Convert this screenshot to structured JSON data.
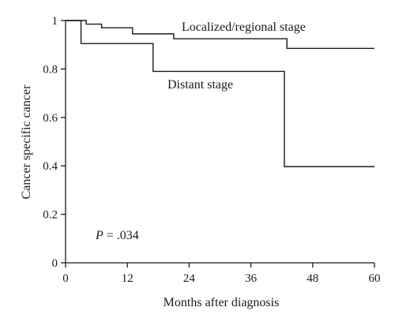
{
  "chart_data": {
    "type": "line",
    "step": true,
    "title": "",
    "xlabel": "Months after diagnosis",
    "ylabel": "Cancer specific cancer",
    "xlim": [
      0,
      60
    ],
    "ylim": [
      0,
      1
    ],
    "xticks": [
      0,
      12,
      24,
      36,
      48,
      60
    ],
    "yticks": [
      0,
      0.2,
      0.4,
      0.6,
      0.8,
      1
    ],
    "xtick_labels": [
      "0",
      "12",
      "24",
      "36",
      "48",
      "60"
    ],
    "ytick_labels": [
      "0",
      "0.2",
      "0.4",
      "0.6",
      "0.8",
      "1"
    ],
    "grid": false,
    "series": [
      {
        "name": "Localized/regional stage",
        "x": [
          0,
          4,
          7,
          13,
          21,
          43,
          60
        ],
        "y": [
          1.0,
          0.985,
          0.97,
          0.945,
          0.925,
          0.885,
          0.885
        ]
      },
      {
        "name": "Distant stage",
        "x": [
          0,
          3,
          17,
          42.5,
          60
        ],
        "y": [
          1.0,
          0.905,
          0.79,
          0.397,
          0.397
        ]
      }
    ],
    "annotation": {
      "italic": "P",
      "text": " = .034"
    }
  }
}
